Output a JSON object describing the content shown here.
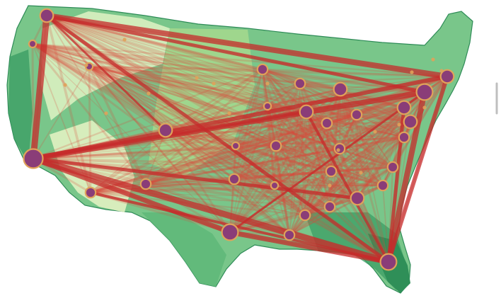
{
  "map": {
    "type": "flow-map",
    "region": "contiguous-united-states",
    "colors": {
      "land_light": "#d9efc0",
      "land_mid": "#79c68a",
      "land_dark": "#3c9d64",
      "route": "#d9483a",
      "route_strong": "#c62b2b",
      "hub_fill": "#8a3d78",
      "hub_ring": "#e0a25a",
      "background": "#ffffff"
    },
    "hubs": [
      {
        "id": "seattle",
        "size": 3
      },
      {
        "id": "portland",
        "size": 1
      },
      {
        "id": "san-francisco",
        "size": 5
      },
      {
        "id": "los-angeles",
        "size": 2
      },
      {
        "id": "salt-lake-city",
        "size": 1
      },
      {
        "id": "denver",
        "size": 3
      },
      {
        "id": "minneapolis",
        "size": 2
      },
      {
        "id": "chicago",
        "size": 3
      },
      {
        "id": "detroit",
        "size": 3
      },
      {
        "id": "new-york",
        "size": 4
      },
      {
        "id": "boston",
        "size": 3
      },
      {
        "id": "philadelphia",
        "size": 3
      },
      {
        "id": "washington",
        "size": 3
      },
      {
        "id": "atlanta",
        "size": 3
      },
      {
        "id": "miami",
        "size": 4
      },
      {
        "id": "dallas",
        "size": 2
      },
      {
        "id": "houston",
        "size": 4
      },
      {
        "id": "new-orleans",
        "size": 2
      },
      {
        "id": "kansas-city",
        "size": 2
      },
      {
        "id": "st-louis",
        "size": 2
      },
      {
        "id": "nashville",
        "size": 2
      },
      {
        "id": "charlotte",
        "size": 2
      },
      {
        "id": "phoenix",
        "size": 2
      },
      {
        "id": "albuquerque",
        "size": 1
      },
      {
        "id": "oklahoma-city",
        "size": 1
      },
      {
        "id": "memphis",
        "size": 2
      },
      {
        "id": "indianapolis",
        "size": 2
      },
      {
        "id": "cleveland",
        "size": 2
      },
      {
        "id": "pittsburgh",
        "size": 2
      },
      {
        "id": "milwaukee",
        "size": 2
      },
      {
        "id": "omaha",
        "size": 1
      },
      {
        "id": "orlando",
        "size": 2
      },
      {
        "id": "tampa",
        "size": 2
      }
    ]
  }
}
